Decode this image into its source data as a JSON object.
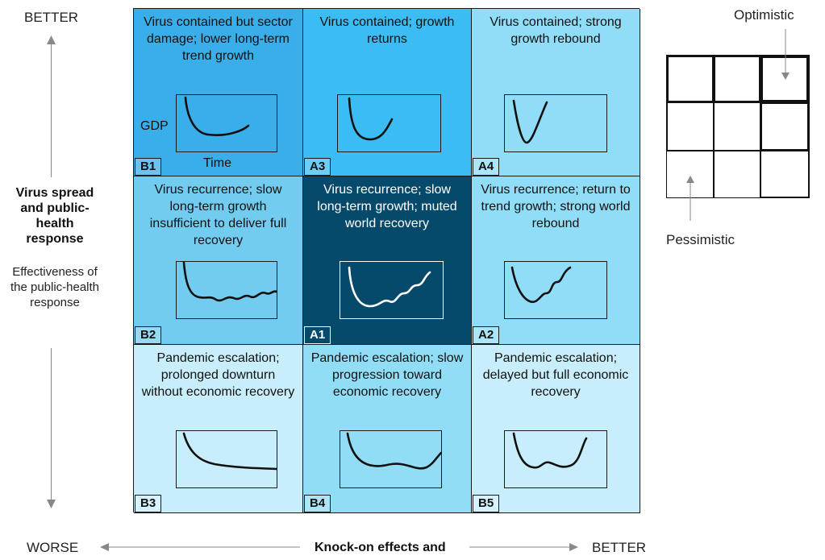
{
  "axes": {
    "y_top": "BETTER",
    "y_bottom": "WORSE",
    "y_title": "Virus spread and public-health response",
    "y_subtitle": "Effectiveness of the public-health response",
    "x_right": "BETTER",
    "x_title": "Knock-on effects and"
  },
  "cells": [
    {
      "code": "B1",
      "text": "Virus contained but sector damage; lower long-term trend growth",
      "bg": "#3aaee8",
      "dark": false,
      "gdp": "GDP",
      "time": "Time"
    },
    {
      "code": "A3",
      "text": "Virus contained; growth returns",
      "bg": "#3bbcf2",
      "dark": false
    },
    {
      "code": "A4",
      "text": "Virus contained; strong growth rebound",
      "bg": "#8fddf7",
      "dark": false
    },
    {
      "code": "B2",
      "text": "Virus recurrence; slow long-term growth insufficient to deliver full recovery",
      "bg": "#72ccef",
      "dark": false
    },
    {
      "code": "A1",
      "text": "Virus recurrence; slow long-term growth; muted world recovery",
      "bg": "#064a6b",
      "dark": true
    },
    {
      "code": "A2",
      "text": "Virus recurrence; return to trend growth; strong world rebound",
      "bg": "#8fddf7",
      "dark": false
    },
    {
      "code": "B3",
      "text": "Pandemic escalation; prolonged downturn without economic recovery",
      "bg": "#c8eefb",
      "dark": false
    },
    {
      "code": "B4",
      "text": "Pandemic escalation; slow progression toward economic recovery",
      "bg": "#92ddf6",
      "dark": false
    },
    {
      "code": "B5",
      "text": "Pandemic escalation; delayed but full economic recovery",
      "bg": "#c8eefb",
      "dark": false
    }
  ],
  "legend": {
    "optimistic": "Optimistic",
    "pessimistic": "Pessimistic"
  }
}
